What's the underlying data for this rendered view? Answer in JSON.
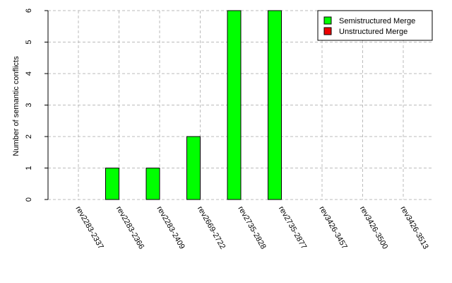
{
  "chart_data": {
    "type": "bar",
    "y_label": "Number of semantic conflicts",
    "categories": [
      "rev2283-2337",
      "rev2283-2366",
      "rev2283-2409",
      "rev2669-2722",
      "rev2735-2828",
      "rev2735-2877",
      "rev3426-3457",
      "rev3426-3500",
      "rev3426-3513"
    ],
    "series": [
      {
        "name": "Semistructured Merge",
        "color": "#00ff00",
        "values": [
          0,
          1,
          1,
          2,
          6,
          6,
          0,
          0,
          0
        ]
      },
      {
        "name": "Unstructured Merge",
        "color": "#ee0000",
        "values": [
          0,
          0,
          0,
          0,
          0,
          0,
          0,
          0,
          0
        ]
      }
    ],
    "ylim": [
      0,
      6
    ],
    "yticks": [
      0,
      1,
      2,
      3,
      4,
      5,
      6
    ],
    "grid": true,
    "legend": "top-right"
  }
}
